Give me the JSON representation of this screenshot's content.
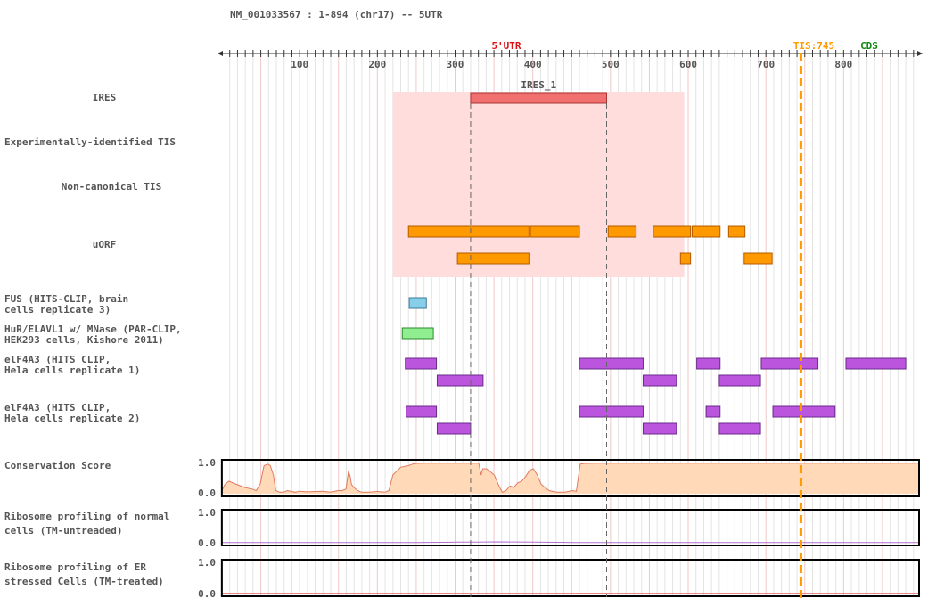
{
  "header": "NM_001033567 : 1-894 (chr17) -- 5UTR",
  "colors": {
    "utr": "#dd1111",
    "tis": "#ff9900",
    "cds": "#118811",
    "ires_region": "#ffdddd",
    "ires_box": "#f07070",
    "uorf": "#ff9900",
    "fus": "#87ceeb",
    "hur": "#90ee90",
    "eif4a3": "#bb55dd",
    "conservation_fill": "#ffd9b8",
    "conservation_line": "#e07a5f",
    "ribo_normal_line": "#b070d0",
    "ribo_stressed_line": "#e07a7a",
    "grid_major": "#f0c8c8",
    "grid_minor": "#e4e4e4"
  },
  "axis": {
    "tick_labels": [
      "100",
      "200",
      "300",
      "400",
      "500",
      "600",
      "700",
      "800"
    ],
    "utr_label": "5'UTR",
    "tis_label": "TIS:745",
    "cds_label": "CDS"
  },
  "track_labels": {
    "ires": "IRES",
    "exp_tis": "Experimentally-identified TIS",
    "noncanonical": "Non-canonical TIS",
    "uorf": "uORF",
    "fus": [
      "FUS (HITS-CLIP, brain",
      "cells replicate 3)"
    ],
    "hur": [
      "HuR/ELAVL1 w/ MNase (PAR-CLIP,",
      "HEK293 cells, Kishore 2011)"
    ],
    "eif4a3_1": [
      "elF4A3 (HITS CLIP,",
      "Hela cells replicate 1)"
    ],
    "eif4a3_2": [
      "elF4A3 (HITS CLIP,",
      "Hela cells replicate 2)"
    ],
    "conservation": "Conservation Score",
    "ribo_normal": [
      "Ribosome profiling of normal",
      "cells (TM-untreaded)"
    ],
    "ribo_stressed": [
      "Ribosome profiling of ER",
      "stressed Cells (TM-treated)"
    ]
  },
  "score_ticks": [
    "1.0",
    "0.0"
  ],
  "chart_data": {
    "type": "genome-track",
    "x_range": [
      1,
      894
    ],
    "tis_position": 745,
    "ires_highlight": [
      220,
      595
    ],
    "ires": [
      {
        "name": "IRES_1",
        "start": 320,
        "end": 495
      }
    ],
    "uorf": [
      {
        "start": 240,
        "end": 395,
        "row": 0
      },
      {
        "start": 397,
        "end": 460,
        "row": 0
      },
      {
        "start": 497,
        "end": 533,
        "row": 0
      },
      {
        "start": 555,
        "end": 603,
        "row": 0
      },
      {
        "start": 605,
        "end": 641,
        "row": 0
      },
      {
        "start": 652,
        "end": 673,
        "row": 0
      },
      {
        "start": 303,
        "end": 395,
        "row": 1
      },
      {
        "start": 590,
        "end": 603,
        "row": 1
      },
      {
        "start": 672,
        "end": 708,
        "row": 1
      }
    ],
    "fus": [
      {
        "start": 241,
        "end": 263,
        "row": 0
      }
    ],
    "hur": [
      {
        "start": 232,
        "end": 272,
        "row": 0
      }
    ],
    "eif4a3_rep1": [
      {
        "start": 236,
        "end": 276,
        "row": 0
      },
      {
        "start": 460,
        "end": 542,
        "row": 0
      },
      {
        "start": 611,
        "end": 641,
        "row": 0
      },
      {
        "start": 694,
        "end": 767,
        "row": 0
      },
      {
        "start": 803,
        "end": 880,
        "row": 0
      },
      {
        "start": 277,
        "end": 336,
        "row": 1
      },
      {
        "start": 542,
        "end": 585,
        "row": 1
      },
      {
        "start": 640,
        "end": 693,
        "row": 1
      }
    ],
    "eif4a3_rep2": [
      {
        "start": 237,
        "end": 276,
        "row": 0
      },
      {
        "start": 460,
        "end": 542,
        "row": 0
      },
      {
        "start": 623,
        "end": 641,
        "row": 0
      },
      {
        "start": 709,
        "end": 789,
        "row": 0
      },
      {
        "start": 277,
        "end": 320,
        "row": 1
      },
      {
        "start": 542,
        "end": 585,
        "row": 1
      },
      {
        "start": 640,
        "end": 693,
        "row": 1
      }
    ],
    "conservation": {
      "x": [
        1,
        5,
        10,
        20,
        30,
        40,
        45,
        50,
        55,
        60,
        63,
        67,
        70,
        75,
        80,
        85,
        95,
        100,
        110,
        130,
        140,
        150,
        155,
        160,
        163,
        165,
        167,
        170,
        175,
        180,
        190,
        200,
        210,
        215,
        220,
        230,
        240,
        245,
        250,
        260,
        280,
        300,
        320,
        330,
        333,
        335,
        340,
        350,
        355,
        360,
        365,
        370,
        375,
        380,
        385,
        390,
        395,
        400,
        405,
        410,
        420,
        430,
        440,
        450,
        455,
        460,
        465,
        480,
        500,
        600,
        700,
        800,
        894
      ],
      "y": [
        0.1,
        0.3,
        0.4,
        0.3,
        0.2,
        0.15,
        0.1,
        0.3,
        0.9,
        0.95,
        0.9,
        0.6,
        0.1,
        0.05,
        0.05,
        0.1,
        0.05,
        0.08,
        0.06,
        0.08,
        0.05,
        0.1,
        0.1,
        0.15,
        0.7,
        0.6,
        0.3,
        0.2,
        0.1,
        0.05,
        0.05,
        0.07,
        0.05,
        0.1,
        0.6,
        0.85,
        0.9,
        0.95,
        0.97,
        0.98,
        0.98,
        0.98,
        0.98,
        0.98,
        0.6,
        0.8,
        0.8,
        0.6,
        0.3,
        0.05,
        0.1,
        0.25,
        0.2,
        0.35,
        0.4,
        0.55,
        0.75,
        0.8,
        0.6,
        0.3,
        0.1,
        0.05,
        0.05,
        0.1,
        0.08,
        0.95,
        0.97,
        0.98,
        0.98,
        0.98,
        0.98,
        0.98,
        0.98
      ]
    },
    "ribo_normal": {
      "x": [
        1,
        250,
        300,
        330,
        350,
        400,
        450,
        894
      ],
      "y": [
        0.01,
        0.01,
        0.02,
        0.02,
        0.03,
        0.02,
        0.01,
        0.01
      ]
    },
    "ribo_stressed": {
      "x": [
        1,
        894
      ],
      "y": [
        0.01,
        0.01
      ]
    },
    "score_ylim": [
      0,
      1
    ]
  }
}
